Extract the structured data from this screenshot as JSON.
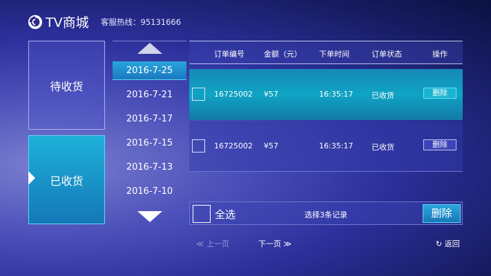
{
  "header": {
    "app_title": "TV商城",
    "hotline": "客服热线：95131666",
    "logo_icon": "swirl-logo-icon"
  },
  "categories": [
    {
      "label": "待收货",
      "active": false
    },
    {
      "label": "已收货",
      "active": true
    }
  ],
  "dates": {
    "items": [
      "2016-7-25",
      "2016-7-21",
      "2016-7-17",
      "2016-7-15",
      "2016-7-13",
      "2016-7-10"
    ],
    "selected": "2016-7-25"
  },
  "table": {
    "headers": [
      "订单编号",
      "金额（元）",
      "下单时间",
      "订单状态",
      "操作"
    ],
    "rows": [
      {
        "order_no": "16725002",
        "amount": "¥57",
        "time": "16:35:17",
        "status": "已收货",
        "action": "删除",
        "focused": true
      },
      {
        "order_no": "16725002",
        "amount": "¥57",
        "time": "16:35:17",
        "status": "已收货",
        "action": "删除",
        "focused": false
      }
    ]
  },
  "footer_bar": {
    "select_all": "全选",
    "selected_count": "选择3条记录",
    "delete": "删除"
  },
  "pager": {
    "prev": "上一页",
    "next": "下一页",
    "back": "返回"
  },
  "colors": {
    "accent": "#1ba8d8",
    "background": "#2c2f9a"
  }
}
